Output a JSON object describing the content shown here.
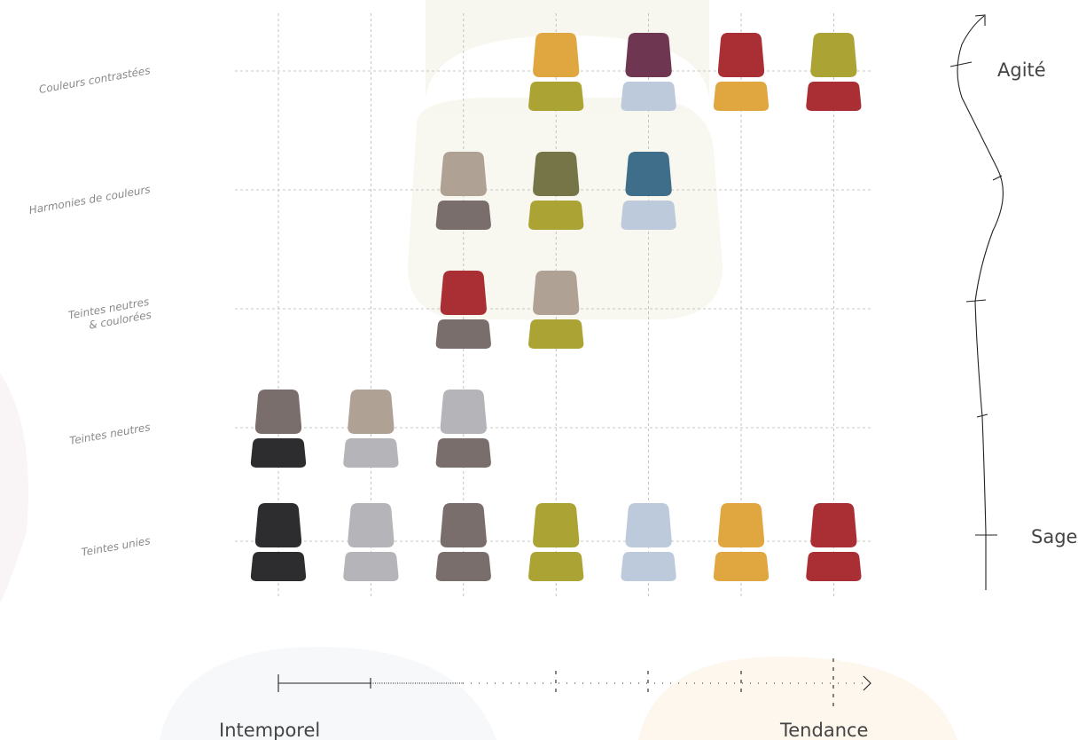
{
  "rows": [
    {
      "label": [
        "Couleurs contrastées"
      ],
      "chairs": [
        null,
        null,
        null,
        {
          "top": "#e0a640",
          "bottom": "#aba434"
        },
        {
          "top": "#6e3651",
          "bottom": "#bccadb"
        },
        {
          "top": "#a92f35",
          "bottom": "#e0a640"
        },
        {
          "top": "#aba434",
          "bottom": "#a92f35"
        }
      ]
    },
    {
      "label": [
        "Harmonies de couleurs"
      ],
      "chairs": [
        null,
        null,
        {
          "top": "#b0a195",
          "bottom": "#7a6e6c"
        },
        {
          "top": "#767548",
          "bottom": "#aba434"
        },
        {
          "top": "#3f6e8a",
          "bottom": "#bccadb"
        },
        null,
        null
      ]
    },
    {
      "label": [
        "Teintes neutres",
        "& coulorées"
      ],
      "chairs": [
        null,
        null,
        {
          "top": "#a92f35",
          "bottom": "#7a6e6c"
        },
        {
          "top": "#b0a195",
          "bottom": "#aba434"
        },
        null,
        null,
        null
      ]
    },
    {
      "label": [
        "Teintes neutres"
      ],
      "chairs": [
        {
          "top": "#7a6e6c",
          "bottom": "#2d2d2f"
        },
        {
          "top": "#b0a195",
          "bottom": "#b5b4b8"
        },
        {
          "top": "#b5b4b8",
          "bottom": "#7a6e6c"
        },
        null,
        null,
        null,
        null
      ]
    },
    {
      "label": [
        "Teintes unies"
      ],
      "chairs": [
        {
          "top": "#2d2d2f",
          "bottom": "#2d2d2f"
        },
        {
          "top": "#b5b4b8",
          "bottom": "#b5b4b8"
        },
        {
          "top": "#7a6e6c",
          "bottom": "#7a6e6c"
        },
        {
          "top": "#aba434",
          "bottom": "#aba434"
        },
        {
          "top": "#bccadb",
          "bottom": "#bccadb"
        },
        {
          "top": "#e0a640",
          "bottom": "#e0a640"
        },
        {
          "top": "#a92f35",
          "bottom": "#a92f35"
        }
      ]
    }
  ],
  "vertical_axis": {
    "top": "Agité",
    "bottom": "Sage"
  },
  "horizontal_axis": {
    "left": "Intemporel",
    "right": "Tendance"
  }
}
